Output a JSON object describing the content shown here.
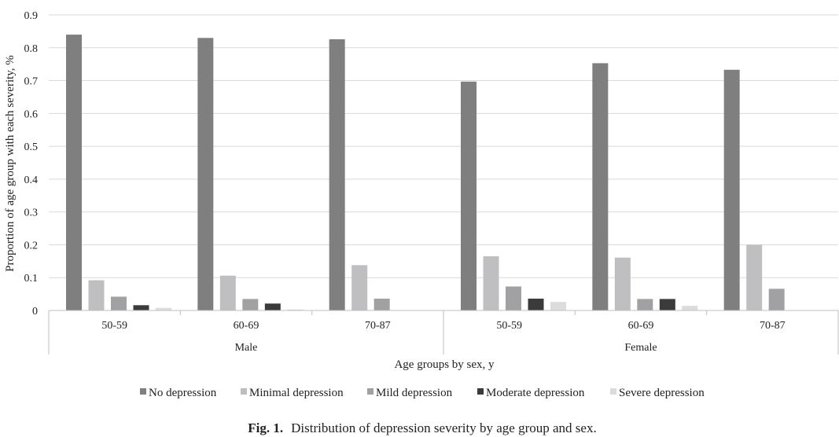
{
  "chart_data": {
    "type": "bar",
    "groups": [
      {
        "name": "Male",
        "categories": [
          "50-59",
          "60-69",
          "70-87"
        ]
      },
      {
        "name": "Female",
        "categories": [
          "50-59",
          "60-69",
          "70-87"
        ]
      }
    ],
    "series": [
      {
        "name": "No depression",
        "color": "#7f7f80",
        "values": [
          0.84,
          0.83,
          0.826,
          0.697,
          0.753,
          0.733
        ]
      },
      {
        "name": "Minimal depression",
        "color": "#bfbfc1",
        "values": [
          0.092,
          0.106,
          0.138,
          0.165,
          0.161,
          0.2
        ]
      },
      {
        "name": "Mild depression",
        "color": "#a1a1a3",
        "values": [
          0.042,
          0.035,
          0.036,
          0.073,
          0.035,
          0.066
        ]
      },
      {
        "name": "Moderate depression",
        "color": "#3b3b3c",
        "values": [
          0.016,
          0.021,
          0,
          0.036,
          0.035,
          0
        ]
      },
      {
        "name": "Severe depression",
        "color": "#dcdcdd",
        "values": [
          0.008,
          0.003,
          0,
          0.026,
          0.014,
          0
        ]
      }
    ],
    "ylim": [
      0,
      0.9
    ],
    "yticks": [
      "0",
      "0.1",
      "0.2",
      "0.3",
      "0.4",
      "0.5",
      "0.6",
      "0.7",
      "0.8",
      "0.9"
    ],
    "ylabel": "Proportion of age group with each severity, %",
    "xlabel": "Age groups by sex, y",
    "grid": true,
    "legend_position": "bottom"
  },
  "caption": {
    "label": "Fig. 1.",
    "text": "Distribution of depression severity by age group and sex."
  }
}
